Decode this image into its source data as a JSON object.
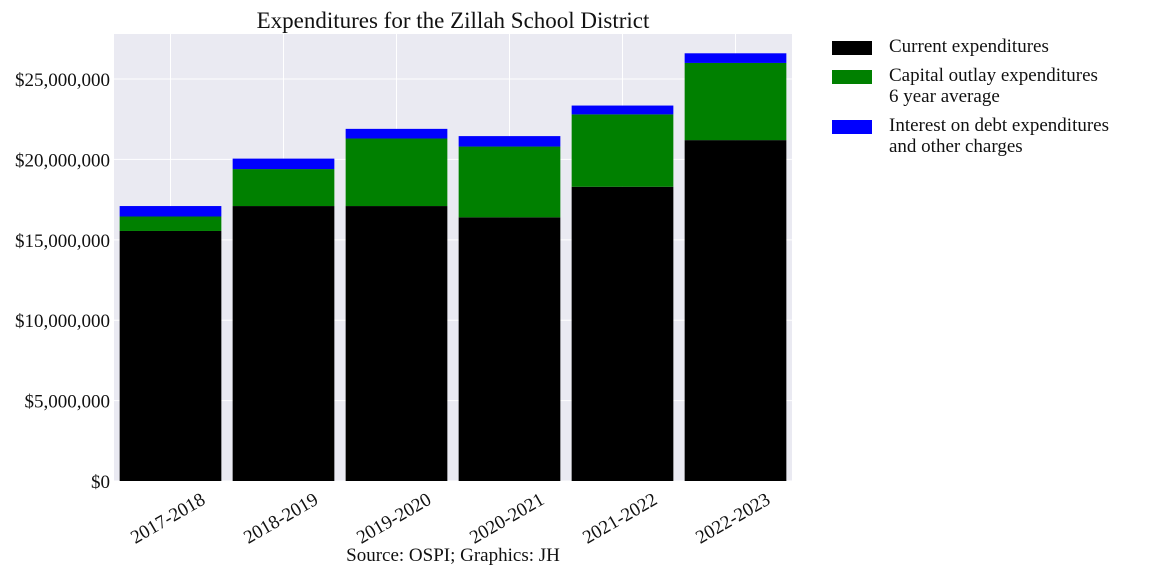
{
  "chart_data": {
    "type": "bar",
    "stacked": true,
    "title": "Expenditures for the Zillah School District",
    "source_note": "Source: OSPI; Graphics: JH",
    "categories": [
      "2017-2018",
      "2018-2019",
      "2019-2020",
      "2020-2021",
      "2021-2022",
      "2022-2023"
    ],
    "series": [
      {
        "name": "Current expenditures",
        "color": "#000000",
        "values": [
          15550000,
          17100000,
          17100000,
          16400000,
          18300000,
          21200000
        ]
      },
      {
        "name": "Capital outlay expenditures\n6 year average",
        "color": "#008000",
        "values": [
          900000,
          2300000,
          4200000,
          4400000,
          4500000,
          4800000
        ]
      },
      {
        "name": "Interest on debt expenditures\nand other charges",
        "color": "#0000ff",
        "values": [
          650000,
          650000,
          600000,
          650000,
          550000,
          600000
        ]
      }
    ],
    "ylim": [
      0,
      27800000
    ],
    "yticks": [
      0,
      5000000,
      10000000,
      15000000,
      20000000,
      25000000
    ],
    "ytick_labels": [
      "$0",
      "$5,000,000",
      "$10,000,000",
      "$15,000,000",
      "$20,000,000",
      "$25,000,000"
    ],
    "xtick_rotation": -30,
    "grid": true,
    "plot_background": "#eaeaf2",
    "grid_color": "#ffffff",
    "legend_position": "outside-right"
  }
}
